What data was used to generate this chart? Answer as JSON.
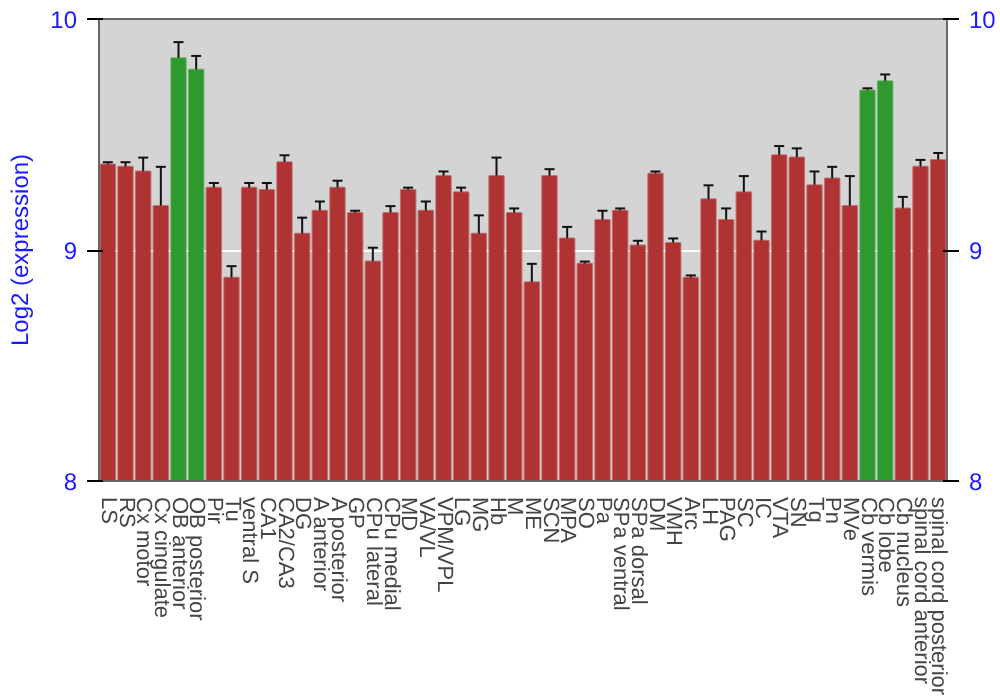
{
  "chart_data": {
    "type": "bar",
    "ylabel": "Log2 (expression)",
    "categories": [
      "LS",
      "RS",
      "Cx motor",
      "Cx cingulate",
      "OB anterior",
      "OB posterior",
      "Pir",
      "Tu",
      "ventral S",
      "CA1",
      "CA2/CA3",
      "DG",
      "A anterior",
      "A posterior",
      "GP",
      "CPu lateral",
      "CPu medial",
      "MD",
      "VA/VL",
      "VPM/VPL",
      "LG",
      "MG",
      "Hb",
      "M",
      "ME",
      "SCN",
      "MPA",
      "SO",
      "Pa",
      "SPa ventral",
      "SPa dorsal",
      "DM",
      "VMH",
      "Arc",
      "LH",
      "PAG",
      "SC",
      "IC",
      "VTA",
      "SN",
      "Tg",
      "Pn",
      "MVe",
      "Cb vermis",
      "Cb lobe",
      "Cb nucleus",
      "spinal cord anterior",
      "spinal cord posterior"
    ],
    "values": [
      9.37,
      9.36,
      9.34,
      9.19,
      9.83,
      9.78,
      9.27,
      8.88,
      9.27,
      9.26,
      9.38,
      9.07,
      9.17,
      9.27,
      9.16,
      8.95,
      9.16,
      9.26,
      9.17,
      9.32,
      9.25,
      9.07,
      9.32,
      9.16,
      8.86,
      9.32,
      9.05,
      8.94,
      9.13,
      9.17,
      9.02,
      9.33,
      9.03,
      8.88,
      9.22,
      9.13,
      9.25,
      9.04,
      9.41,
      9.4,
      9.28,
      9.31,
      9.19,
      9.69,
      9.73,
      9.18,
      9.36,
      9.39
    ],
    "errors": [
      0.01,
      0.02,
      0.06,
      0.17,
      0.07,
      0.06,
      0.02,
      0.05,
      0.02,
      0.03,
      0.03,
      0.07,
      0.04,
      0.03,
      0.01,
      0.06,
      0.03,
      0.01,
      0.04,
      0.02,
      0.02,
      0.08,
      0.08,
      0.02,
      0.08,
      0.03,
      0.05,
      0.01,
      0.04,
      0.01,
      0.02,
      0.01,
      0.02,
      0.01,
      0.06,
      0.05,
      0.07,
      0.04,
      0.04,
      0.04,
      0.06,
      0.05,
      0.13,
      0.01,
      0.03,
      0.05,
      0.03,
      0.03
    ],
    "colors": [
      "#b03333",
      "#b03333",
      "#b03333",
      "#b03333",
      "#2e9a2e",
      "#2e9a2e",
      "#b03333",
      "#b03333",
      "#b03333",
      "#b03333",
      "#b03333",
      "#b03333",
      "#b03333",
      "#b03333",
      "#b03333",
      "#b03333",
      "#b03333",
      "#b03333",
      "#b03333",
      "#b03333",
      "#b03333",
      "#b03333",
      "#b03333",
      "#b03333",
      "#b03333",
      "#b03333",
      "#b03333",
      "#b03333",
      "#b03333",
      "#b03333",
      "#b03333",
      "#b03333",
      "#b03333",
      "#b03333",
      "#b03333",
      "#b03333",
      "#b03333",
      "#b03333",
      "#b03333",
      "#b03333",
      "#b03333",
      "#b03333",
      "#b03333",
      "#2e9a2e",
      "#2e9a2e",
      "#b03333",
      "#b03333",
      "#b03333"
    ],
    "ylim": [
      8,
      10
    ],
    "yticks": [
      8,
      9,
      10
    ],
    "y2lim": [
      8,
      10
    ],
    "y2ticks": [
      8,
      9,
      10
    ],
    "grid": "y"
  }
}
